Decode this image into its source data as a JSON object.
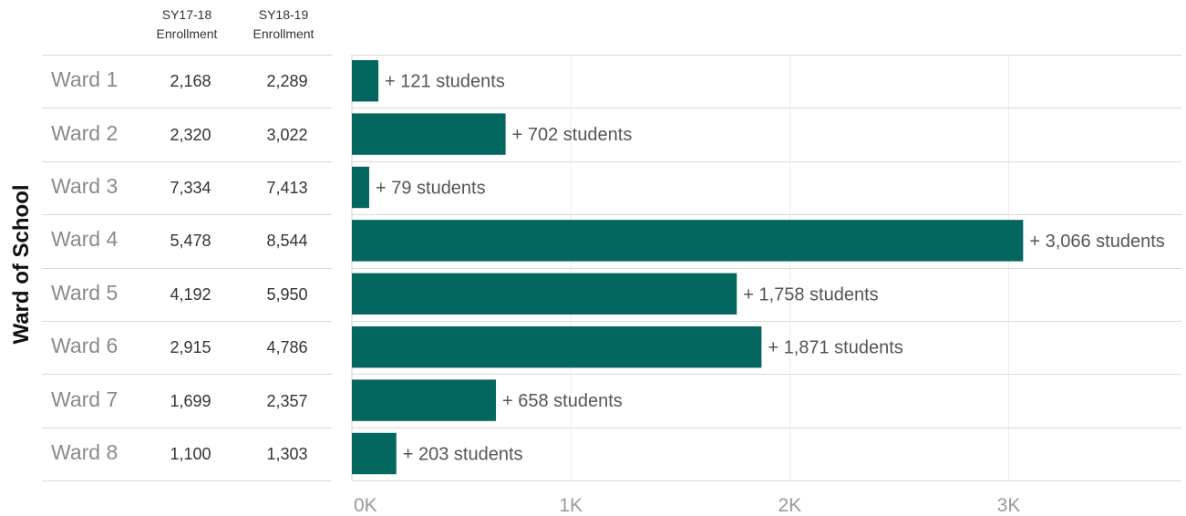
{
  "yaxis_title": "Ward of School",
  "columns": [
    {
      "line1": "SY17-18",
      "line2": "Enrollment"
    },
    {
      "line1": "SY18-19",
      "line2": "Enrollment"
    }
  ],
  "rows": [
    {
      "ward": "Ward 1",
      "sy1718": "2,168",
      "sy1819": "2,289"
    },
    {
      "ward": "Ward 2",
      "sy1718": "2,320",
      "sy1819": "3,022"
    },
    {
      "ward": "Ward 3",
      "sy1718": "7,334",
      "sy1819": "7,413"
    },
    {
      "ward": "Ward 4",
      "sy1718": "5,478",
      "sy1819": "8,544"
    },
    {
      "ward": "Ward 5",
      "sy1718": "4,192",
      "sy1819": "5,950"
    },
    {
      "ward": "Ward 6",
      "sy1718": "2,915",
      "sy1819": "4,786"
    },
    {
      "ward": "Ward 7",
      "sy1718": "1,699",
      "sy1819": "2,357"
    },
    {
      "ward": "Ward 8",
      "sy1718": "1,100",
      "sy1819": "1,303"
    }
  ],
  "chart_data": {
    "type": "bar",
    "orientation": "horizontal",
    "categories": [
      "Ward 1",
      "Ward 2",
      "Ward 3",
      "Ward 4",
      "Ward 5",
      "Ward 6",
      "Ward 7",
      "Ward 8"
    ],
    "values": [
      121,
      702,
      79,
      3066,
      1758,
      1871,
      658,
      203
    ],
    "data_labels": [
      "+ 121 students",
      "+ 702 students",
      "+ 79 students",
      "+ 3,066 students",
      "+ 1,758 students",
      "+ 1,871 students",
      "+ 658 students",
      "+ 203 students"
    ],
    "x_ticks": [
      0,
      1000,
      2000,
      3000
    ],
    "x_tick_labels": [
      "0K",
      "1K",
      "2K",
      "3K"
    ],
    "xlim": [
      0,
      3800
    ],
    "bar_color": "#03665f",
    "grid": true
  }
}
